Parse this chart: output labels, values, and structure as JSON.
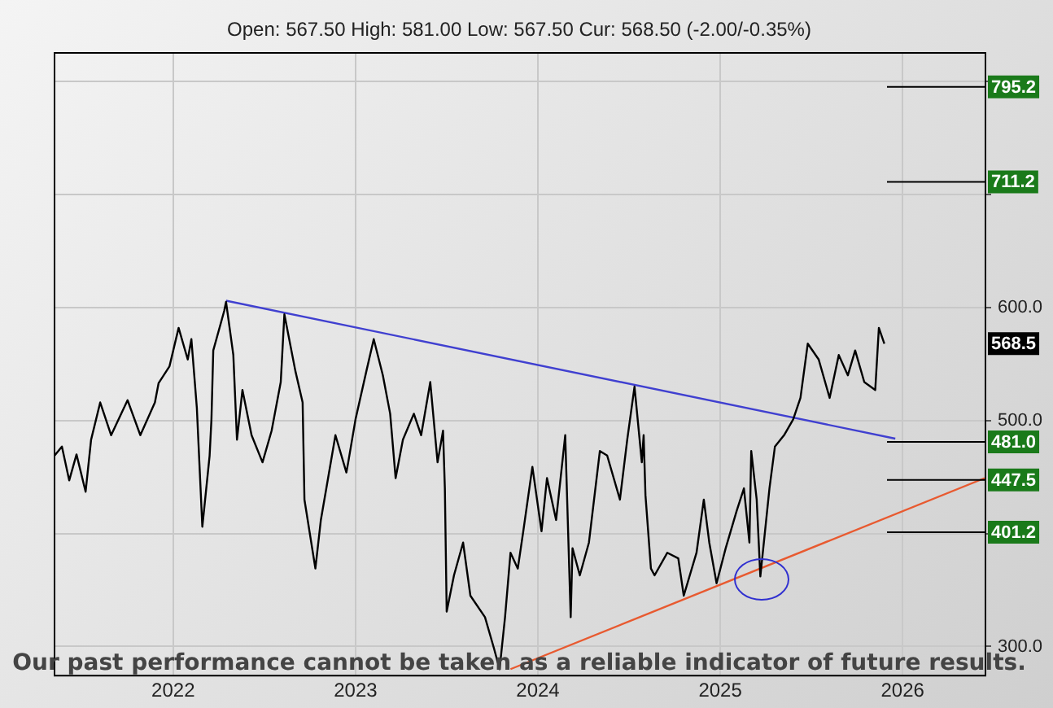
{
  "chart_data": {
    "type": "line",
    "subtitle": "Open: 567.50 High: 581.00 Low: 567.50 Cur: 568.50 (-2.00/-0.35%)",
    "xlim": [
      2021.345,
      2026.45
    ],
    "xticks": [
      {
        "value": 2022,
        "label": "2022"
      },
      {
        "value": 2023,
        "label": "2023"
      },
      {
        "value": 2024,
        "label": "2024"
      },
      {
        "value": 2025,
        "label": "2025"
      },
      {
        "value": 2026,
        "label": "2026"
      }
    ],
    "ylim": [
      275,
      826
    ],
    "yticks": [
      {
        "value": 300,
        "label": "300.0"
      },
      {
        "value": 400,
        "label": null
      },
      {
        "value": 500,
        "label": "500.0"
      },
      {
        "value": 600,
        "label": "600.0"
      },
      {
        "value": 700,
        "label": null
      },
      {
        "value": 800,
        "label": null
      }
    ],
    "grid": true,
    "legend": false,
    "marker": "none",
    "series": [
      {
        "color": "#000000",
        "x": [
          2021.35,
          2021.39,
          2021.43,
          2021.47,
          2021.52,
          2021.55,
          2021.6,
          2021.66,
          2021.75,
          2021.82,
          2021.9,
          2021.92,
          2021.98,
          2022.03,
          2022.08,
          2022.1,
          2022.13,
          2022.16,
          2022.2,
          2022.21,
          2022.22,
          2022.28,
          2022.29,
          2022.33,
          2022.35,
          2022.38,
          2022.43,
          2022.49,
          2022.54,
          2022.59,
          2022.61,
          2022.67,
          2022.71,
          2022.72,
          2022.78,
          2022.81,
          2022.84,
          2022.89,
          2022.95,
          2022.96,
          2023.0,
          2023.06,
          2023.1,
          2023.15,
          2023.19,
          2023.22,
          2023.26,
          2023.32,
          2023.36,
          2023.41,
          2023.45,
          2023.48,
          2023.49,
          2023.5,
          2023.54,
          2023.59,
          2023.63,
          2023.71,
          2023.76,
          2023.79,
          2023.82,
          2023.85,
          2023.89,
          2023.92,
          2023.97,
          2024.02,
          2024.05,
          2024.1,
          2024.15,
          2024.18,
          2024.19,
          2024.23,
          2024.28,
          2024.34,
          2024.38,
          2024.45,
          2024.49,
          2024.53,
          2024.57,
          2024.58,
          2024.59,
          2024.62,
          2024.64,
          2024.71,
          2024.77,
          2024.8,
          2024.87,
          2024.91,
          2024.94,
          2024.98,
          2025.03,
          2025.09,
          2025.13,
          2025.16,
          2025.17,
          2025.2,
          2025.22,
          2025.27,
          2025.3,
          2025.35,
          2025.4,
          2025.44,
          2025.48,
          2025.54,
          2025.6,
          2025.65,
          2025.7,
          2025.74,
          2025.79,
          2025.85,
          2025.87,
          2025.9
        ],
        "values": [
          469,
          477,
          447,
          470,
          437,
          483,
          516,
          487,
          518,
          487,
          516,
          533,
          548,
          582,
          554,
          572,
          511,
          406,
          469,
          501,
          562,
          597,
          605,
          558,
          483,
          527,
          487,
          463,
          491,
          534,
          594,
          544,
          516,
          430,
          369,
          412,
          440,
          487,
          454,
          463,
          501,
          544,
          572,
          540,
          506,
          449,
          483,
          506,
          487,
          534,
          463,
          491,
          440,
          331,
          363,
          392,
          345,
          326,
          298,
          280,
          326,
          383,
          369,
          402,
          459,
          402,
          449,
          412,
          487,
          326,
          387,
          363,
          392,
          473,
          469,
          430,
          483,
          530,
          463,
          487,
          434,
          369,
          363,
          383,
          378,
          345,
          383,
          430,
          392,
          356,
          387,
          420,
          440,
          392,
          473,
          430,
          362,
          440,
          477,
          487,
          501,
          520,
          568,
          554,
          520,
          558,
          540,
          562,
          534,
          527,
          582,
          568
        ]
      },
      {
        "color": "#4040d0",
        "x": [
          2022.29,
          2025.96
        ],
        "values": [
          606,
          484
        ]
      },
      {
        "color": "#e85a30",
        "x": [
          2023.85,
          2026.45
        ],
        "values": [
          280,
          449
        ]
      }
    ],
    "ref_lines": [
      {
        "axis": "y",
        "value": 795.2,
        "label": "795.2"
      },
      {
        "axis": "y",
        "value": 711.2,
        "label": "711.2"
      },
      {
        "axis": "y",
        "value": 481.0,
        "label": "481.0"
      },
      {
        "axis": "y",
        "value": 447.5,
        "label": "447.5"
      },
      {
        "axis": "y",
        "value": 401.2,
        "label": "401.2"
      }
    ],
    "annotations": [
      "568.5",
      "Our past performance cannot be taken as a reliable indicator of future results."
    ]
  }
}
